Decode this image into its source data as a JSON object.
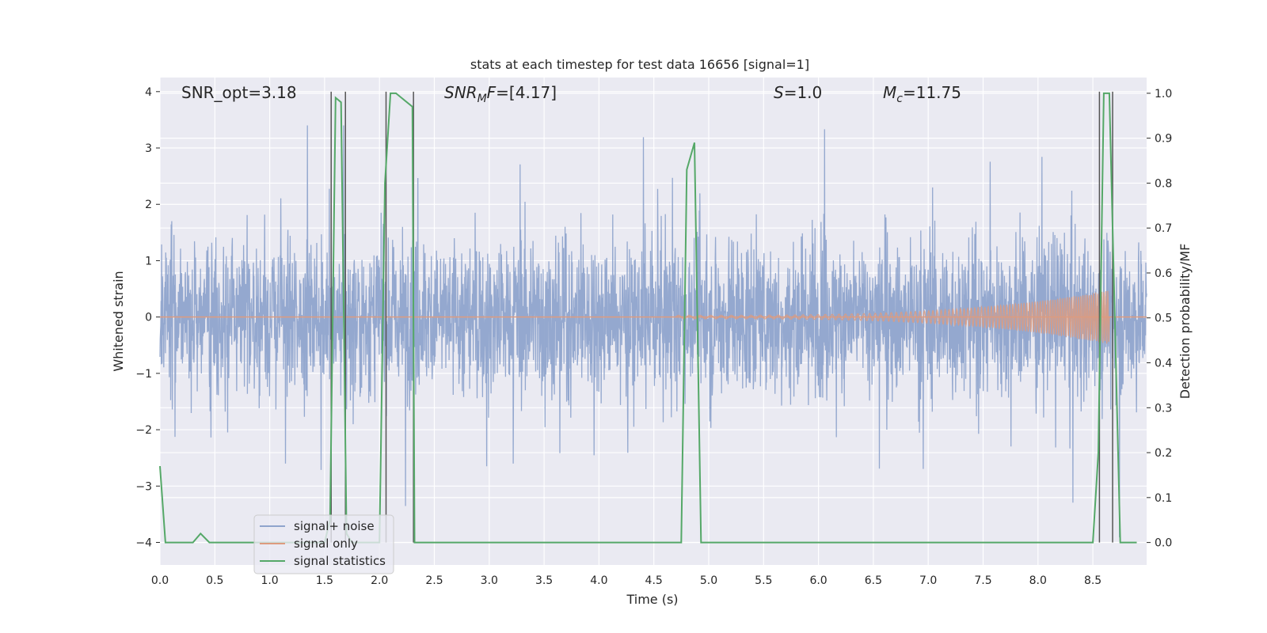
{
  "chart_data": {
    "type": "line",
    "title": "stats at each timestep for test data 16656 [signal=1]",
    "xlabel": "Time (s)",
    "ylabel_left": "Whitened strain",
    "ylabel_right": "Detection probability/MF",
    "xlim": [
      0.0,
      8.99
    ],
    "ylim_left": [
      -4.4,
      4.25
    ],
    "ylim_right": [
      -0.05,
      1.035
    ],
    "x_ticks": [
      "0.0",
      "0.5",
      "1.0",
      "1.5",
      "2.0",
      "2.5",
      "3.0",
      "3.5",
      "4.0",
      "4.5",
      "5.0",
      "5.5",
      "6.0",
      "6.5",
      "7.0",
      "7.5",
      "8.0",
      "8.5"
    ],
    "y_ticks_left": [
      "−4",
      "−3",
      "−2",
      "−1",
      "0",
      "1",
      "2",
      "3",
      "4"
    ],
    "y_ticks_right": [
      "0.0",
      "0.1",
      "0.2",
      "0.3",
      "0.4",
      "0.5",
      "0.6",
      "0.7",
      "0.8",
      "0.9",
      "1.0"
    ],
    "grid": true,
    "legend_position": "lower-left",
    "annotations": {
      "snr_opt": "SNR_opt=3.18",
      "snr_mf": "=[4.17]",
      "s_value": "=1.0",
      "mc_value": "=11.75"
    },
    "series": [
      {
        "name": "signal+ noise",
        "color": "#8fa4cc",
        "description_level": "noise band approx ±1.3 with spikes up to ±3.5",
        "amplitude_envelope": [
          1.35,
          1.35
        ],
        "spike_max": 3.4
      },
      {
        "name": "signal only",
        "color": "#dd9b7f",
        "chirp": {
          "start_x": 4.7,
          "end_x": 8.65,
          "peak_amplitude": 0.45
        }
      },
      {
        "name": "signal statistics",
        "color": "#55a868",
        "x": [
          0.0,
          0.05,
          0.1,
          0.3,
          0.37,
          0.45,
          1.5,
          1.55,
          1.6,
          1.65,
          1.7,
          1.75,
          2.0,
          2.05,
          2.1,
          2.15,
          2.3,
          2.32,
          2.4,
          4.75,
          4.8,
          4.87,
          4.93,
          5.0,
          8.5,
          8.55,
          8.6,
          8.65,
          8.7,
          8.75,
          8.8,
          8.9
        ],
        "y": [
          0.17,
          0.0,
          0.0,
          0.0,
          0.02,
          0.0,
          0.0,
          0.05,
          0.99,
          0.98,
          0.02,
          0.0,
          0.0,
          0.8,
          1.0,
          1.0,
          0.97,
          0.0,
          0.0,
          0.0,
          0.83,
          0.89,
          0.0,
          0.0,
          0.0,
          0.2,
          1.0,
          1.0,
          0.5,
          0.0,
          0.0,
          0.0
        ]
      }
    ],
    "vertical_markers_x": [
      1.56,
      1.69,
      2.06,
      2.31,
      8.56,
      8.68
    ],
    "legend": [
      "signal+ noise",
      "signal only",
      "signal statistics"
    ]
  }
}
